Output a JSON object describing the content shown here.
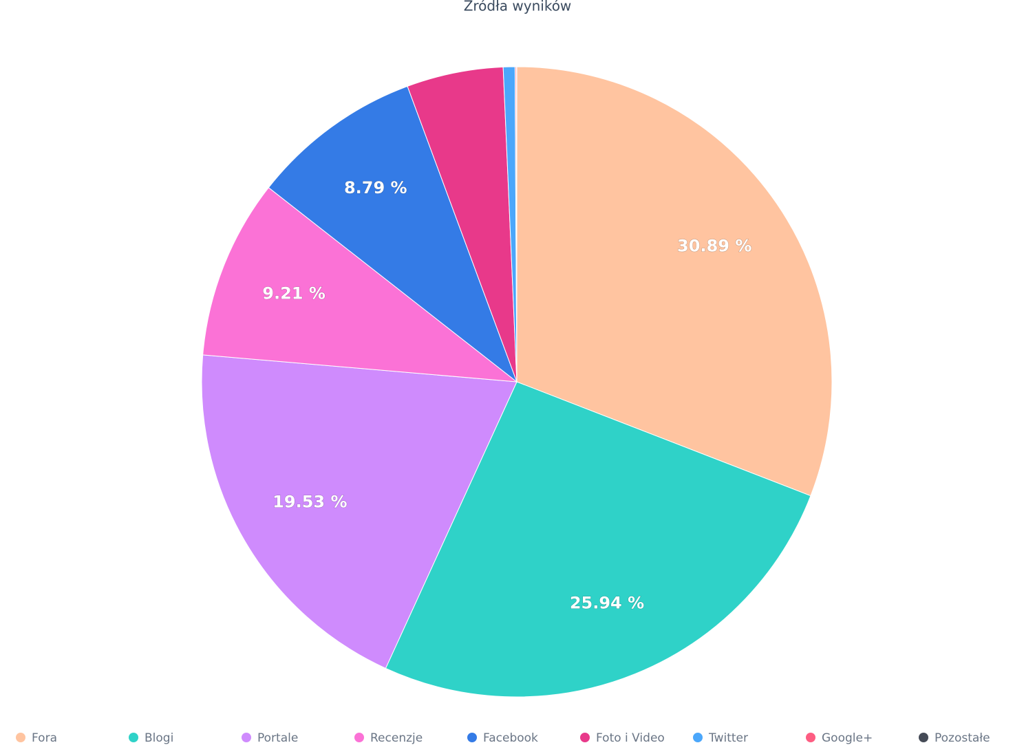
{
  "chart_data": {
    "type": "pie",
    "title": "Źródła wyników",
    "categories": [
      "Fora",
      "Blogi",
      "Portale",
      "Recenzje",
      "Facebook",
      "Foto i Video",
      "Twitter",
      "Google+",
      "Pozostałe"
    ],
    "values": [
      30.89,
      25.94,
      19.53,
      9.21,
      8.79,
      4.95,
      0.6,
      0.06,
      0.03
    ],
    "value_labels": [
      "30.89 %",
      "25.94 %",
      "19.53 %",
      "9.21 %",
      "8.79 %",
      null,
      null,
      null,
      null
    ],
    "colors": [
      "#ffc4a0",
      "#2fd2c8",
      "#cf8bfd",
      "#fb72d6",
      "#347be6",
      "#e8398a",
      "#4ba7fb",
      "#fd5d82",
      "#454b57"
    ]
  }
}
